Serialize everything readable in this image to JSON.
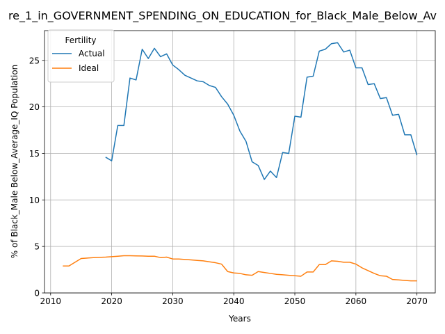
{
  "chart_data": {
    "type": "line",
    "title": "re_1_in_GOVERNMENT_SPENDING_ON_EDUCATION_for_Black_Male_Below_Av",
    "xlabel": "Years",
    "ylabel": "% of Black_Male Below_Average_IQ Population",
    "xlim": [
      2009,
      2073
    ],
    "ylim": [
      0,
      28.2
    ],
    "xticks": [
      2010,
      2020,
      2030,
      2040,
      2050,
      2060,
      2070
    ],
    "yticks": [
      0,
      5,
      10,
      15,
      20,
      25
    ],
    "grid": true,
    "legend": {
      "title": "Fertility",
      "placement": "top-left"
    },
    "series": [
      {
        "name": "Actual",
        "color": "#1f77b4",
        "x": [
          2019,
          2020,
          2021,
          2022,
          2023,
          2024,
          2025,
          2026,
          2027,
          2028,
          2029,
          2030,
          2031,
          2032,
          2033,
          2034,
          2035,
          2036,
          2037,
          2038,
          2039,
          2040,
          2041,
          2042,
          2043,
          2044,
          2045,
          2046,
          2047,
          2048,
          2049,
          2050,
          2051,
          2052,
          2053,
          2054,
          2055,
          2056,
          2057,
          2058,
          2059,
          2060,
          2061,
          2062,
          2063,
          2064,
          2065,
          2066,
          2067,
          2068,
          2069,
          2070
        ],
        "values": [
          14.6,
          14.2,
          18.0,
          18.0,
          23.1,
          22.9,
          26.2,
          25.2,
          26.3,
          25.4,
          25.7,
          24.5,
          24.0,
          23.4,
          23.1,
          22.8,
          22.7,
          22.3,
          22.1,
          21.1,
          20.3,
          19.1,
          17.4,
          16.3,
          14.1,
          13.7,
          12.2,
          13.1,
          12.4,
          15.1,
          15.0,
          19.0,
          18.9,
          23.2,
          23.3,
          26.0,
          26.2,
          26.8,
          26.9,
          25.9,
          26.1,
          24.2,
          24.2,
          22.4,
          22.5,
          20.9,
          21.0,
          19.1,
          19.2,
          17.0,
          17.0,
          14.8
        ]
      },
      {
        "name": "Ideal",
        "color": "#ff7f0e",
        "x": [
          2012,
          2013,
          2014,
          2015,
          2016,
          2017,
          2018,
          2019,
          2020,
          2021,
          2022,
          2023,
          2024,
          2025,
          2026,
          2027,
          2028,
          2029,
          2030,
          2031,
          2032,
          2033,
          2034,
          2035,
          2036,
          2037,
          2038,
          2039,
          2040,
          2041,
          2042,
          2043,
          2044,
          2045,
          2046,
          2047,
          2048,
          2049,
          2050,
          2051,
          2052,
          2053,
          2054,
          2055,
          2056,
          2057,
          2058,
          2059,
          2060,
          2061,
          2062,
          2063,
          2064,
          2065,
          2066,
          2067,
          2068,
          2069,
          2070
        ],
        "values": [
          2.9,
          2.9,
          3.3,
          3.7,
          3.75,
          3.8,
          3.82,
          3.85,
          3.9,
          3.95,
          4.0,
          4.0,
          3.98,
          3.97,
          3.95,
          3.95,
          3.8,
          3.85,
          3.65,
          3.65,
          3.6,
          3.55,
          3.5,
          3.45,
          3.35,
          3.25,
          3.1,
          2.3,
          2.15,
          2.1,
          1.95,
          1.9,
          2.3,
          2.2,
          2.1,
          2.0,
          1.95,
          1.9,
          1.85,
          1.8,
          2.25,
          2.25,
          3.05,
          3.05,
          3.45,
          3.4,
          3.3,
          3.3,
          3.1,
          2.7,
          2.4,
          2.1,
          1.85,
          1.8,
          1.45,
          1.4,
          1.35,
          1.3,
          1.3
        ]
      }
    ]
  }
}
